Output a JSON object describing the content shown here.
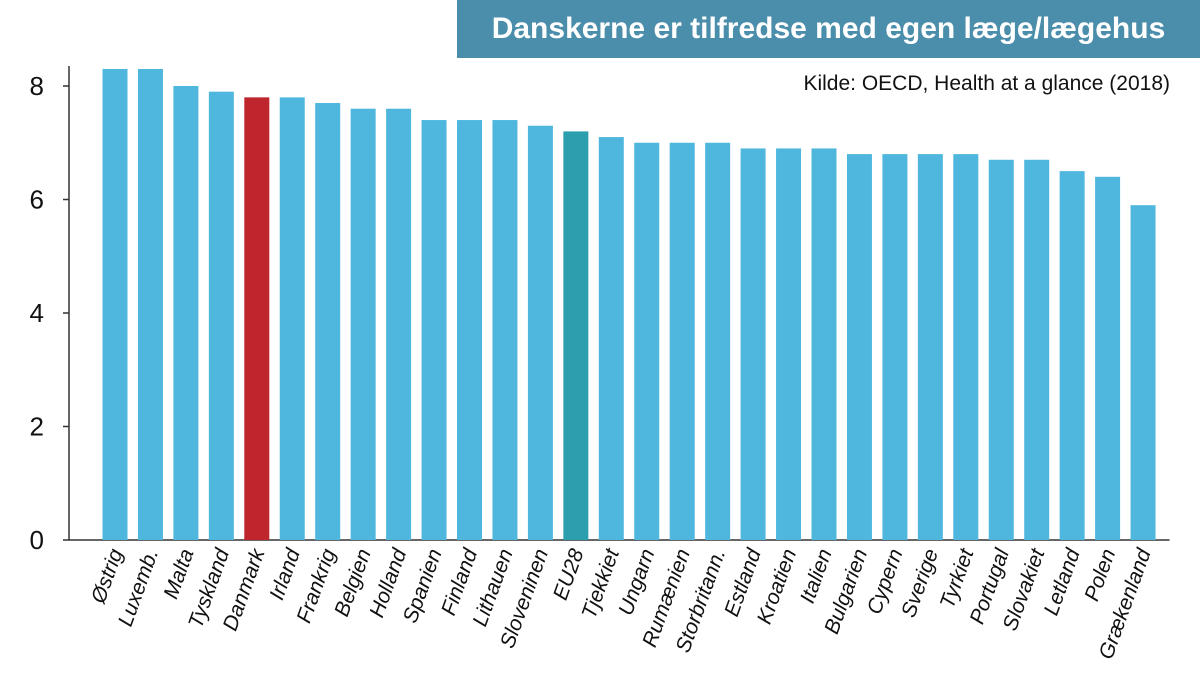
{
  "chart_data": {
    "type": "bar",
    "title": "Danskerne er tilfredse med egen læge/lægehus",
    "subtitle": "Kilde: OECD, Health at a glance (2018)",
    "xlabel": "",
    "ylabel": "",
    "ylim": [
      0,
      8.3
    ],
    "yticks": [
      0,
      2,
      4,
      6,
      8
    ],
    "grid": false,
    "categories": [
      "Østrig",
      "Luxemb.",
      "Malta",
      "Tyskland",
      "Danmark",
      "Irland",
      "Frankrig",
      "Belgien",
      "Holland",
      "Spanien",
      "Finland",
      "Lithauen",
      "Sloveninen",
      "EU28",
      "Tjekkiet",
      "Ungarn",
      "Rumænien",
      "Storbritann.",
      "Estland",
      "Kroatien",
      "Italien",
      "Bulgarien",
      "Cypern",
      "Sverige",
      "Tyrkiet",
      "Portugal",
      "Slovakiet",
      "Letland",
      "Polen",
      "Grækenland"
    ],
    "values": [
      8.3,
      8.3,
      8.0,
      7.9,
      7.8,
      7.8,
      7.7,
      7.6,
      7.6,
      7.4,
      7.4,
      7.4,
      7.3,
      7.2,
      7.1,
      7.0,
      7.0,
      7.0,
      6.9,
      6.9,
      6.9,
      6.8,
      6.8,
      6.8,
      6.8,
      6.7,
      6.7,
      6.5,
      6.4,
      5.9
    ],
    "colors": {
      "default": "#4fb7de",
      "highlight": "#be252c",
      "average": "#2b9fae",
      "title_bg": "#4a8eab",
      "axis": "#333333"
    },
    "highlight_category": "Danmark",
    "average_category": "EU28"
  }
}
